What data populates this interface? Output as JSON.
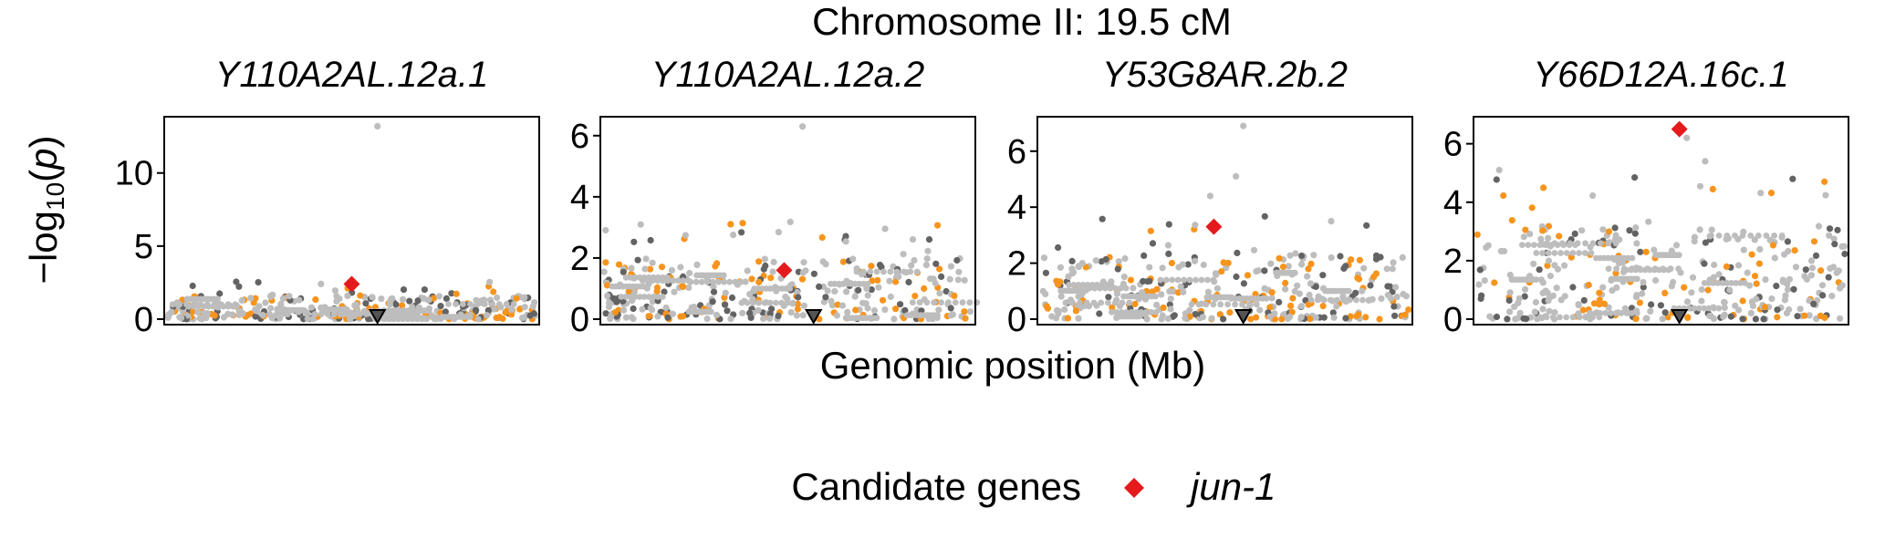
{
  "title": "Chromosome II: 19.5 cM",
  "x_axis_label": "Genomic position (Mb)",
  "y_axis_label": {
    "prefix": "−log",
    "sub": "10",
    "paren_open": "(",
    "var": "p",
    "paren_close": ")"
  },
  "legend": {
    "title": "Candidate genes",
    "item": "jun-1",
    "item_color": "#e41a1c"
  },
  "colors": {
    "background_snp": "#bdbdbd",
    "dark_snp": "#636363",
    "candidate_snp": "#f7941d",
    "lead_gene": "#e41a1c",
    "panel_border": "#000000"
  },
  "chart_data": [
    {
      "type": "scatter",
      "strip_title": "Y110A2AL.12a.1",
      "ylim": [
        0,
        13.6
      ],
      "yticks": [
        0,
        5,
        10
      ],
      "peak_marker_x": 0.57,
      "jun1_point": {
        "x": 0.5,
        "y": 2.4
      },
      "top_points": [
        {
          "x": 0.57,
          "y": 13.2
        }
      ],
      "band_max": 1.6,
      "seed": 11
    },
    {
      "type": "scatter",
      "strip_title": "Y110A2AL.12a.2",
      "ylim": [
        0,
        6.5
      ],
      "yticks": [
        0,
        2,
        4,
        6
      ],
      "peak_marker_x": 0.57,
      "jun1_point": {
        "x": 0.49,
        "y": 1.6
      },
      "top_points": [
        {
          "x": 0.54,
          "y": 6.3
        }
      ],
      "band_max": 2.0,
      "seed": 23
    },
    {
      "type": "scatter",
      "strip_title": "Y53G8AR.2b.2",
      "ylim": [
        0,
        7.1
      ],
      "yticks": [
        0,
        2,
        4,
        6
      ],
      "peak_marker_x": 0.55,
      "jun1_point": {
        "x": 0.47,
        "y": 3.3
      },
      "top_points": [
        {
          "x": 0.55,
          "y": 6.9
        },
        {
          "x": 0.53,
          "y": 5.1
        },
        {
          "x": 0.46,
          "y": 4.4
        }
      ],
      "band_max": 2.3,
      "seed": 37
    },
    {
      "type": "scatter",
      "strip_title": "Y66D12A.16c.1",
      "ylim": [
        0,
        6.8
      ],
      "yticks": [
        0,
        2,
        4,
        6
      ],
      "peak_marker_x": 0.55,
      "jun1_point": {
        "x": 0.55,
        "y": 6.5
      },
      "top_points": [
        {
          "x": 0.57,
          "y": 6.2
        },
        {
          "x": 0.62,
          "y": 5.4
        },
        {
          "x": 0.06,
          "y": 5.1
        }
      ],
      "band_max": 3.2,
      "seed": 51
    }
  ]
}
